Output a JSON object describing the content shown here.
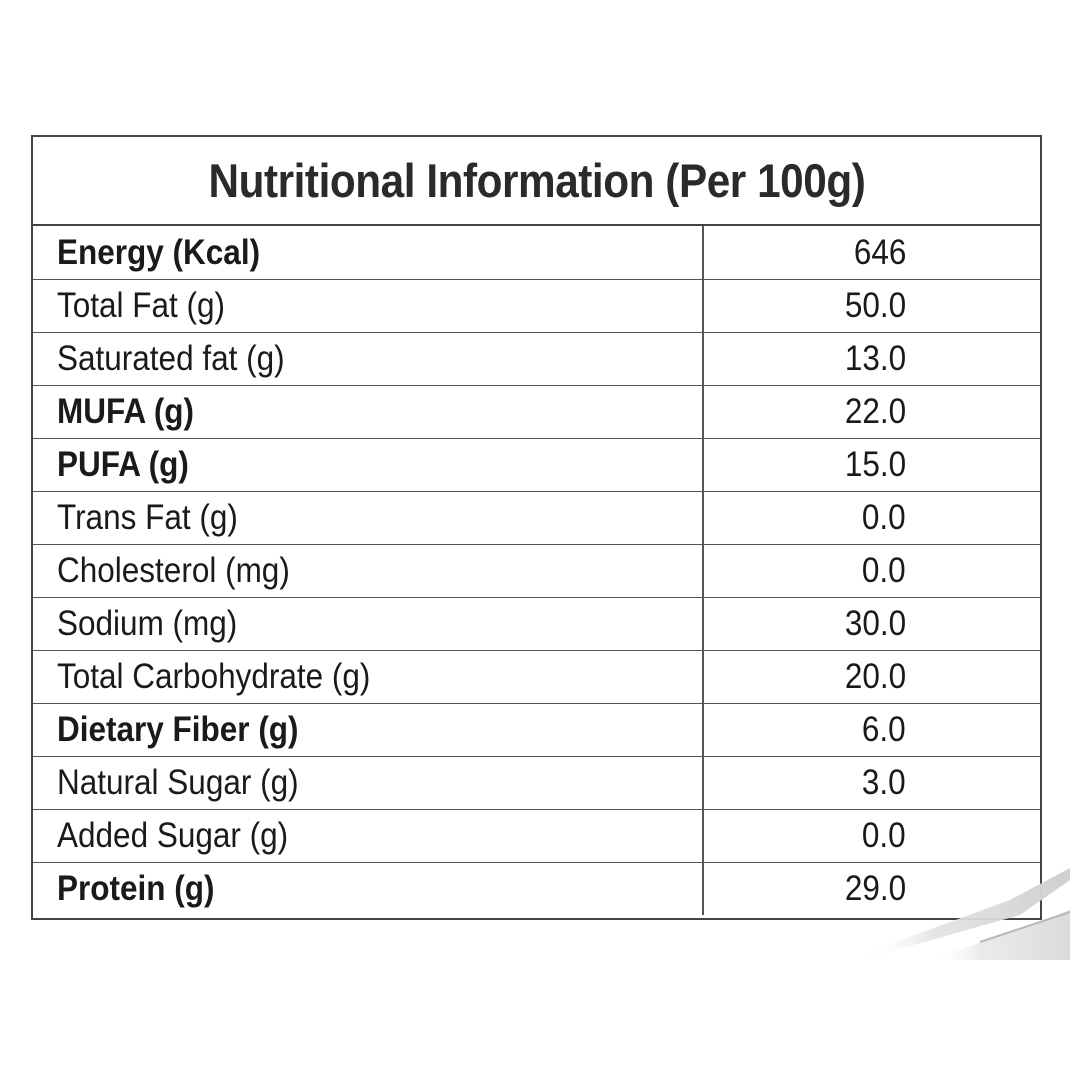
{
  "title": "Nutritional Information (Per 100g)",
  "rows": [
    {
      "label": "Energy (Kcal)",
      "value": "646",
      "bold": true
    },
    {
      "label": "Total Fat (g)",
      "value": "50.0",
      "bold": false
    },
    {
      "label": "Saturated fat (g)",
      "value": "13.0",
      "bold": false
    },
    {
      "label": "MUFA (g)",
      "value": "22.0",
      "bold": true
    },
    {
      "label": "PUFA (g)",
      "value": "15.0",
      "bold": true
    },
    {
      "label": "Trans Fat (g)",
      "value": "0.0",
      "bold": false
    },
    {
      "label": "Cholesterol (mg)",
      "value": "0.0",
      "bold": false
    },
    {
      "label": "Sodium (mg)",
      "value": "30.0",
      "bold": false
    },
    {
      "label": "Total Carbohydrate (g)",
      "value": "20.0",
      "bold": false
    },
    {
      "label": "Dietary Fiber (g)",
      "value": "6.0",
      "bold": true
    },
    {
      "label": "Natural Sugar (g)",
      "value": "3.0",
      "bold": false
    },
    {
      "label": "Added Sugar (g)",
      "value": "0.0",
      "bold": false
    },
    {
      "label": "Protein (g)",
      "value": "29.0",
      "bold": true
    }
  ],
  "colors": {
    "border": "#444444",
    "text": "#1a1a1a",
    "background": "#ffffff"
  }
}
